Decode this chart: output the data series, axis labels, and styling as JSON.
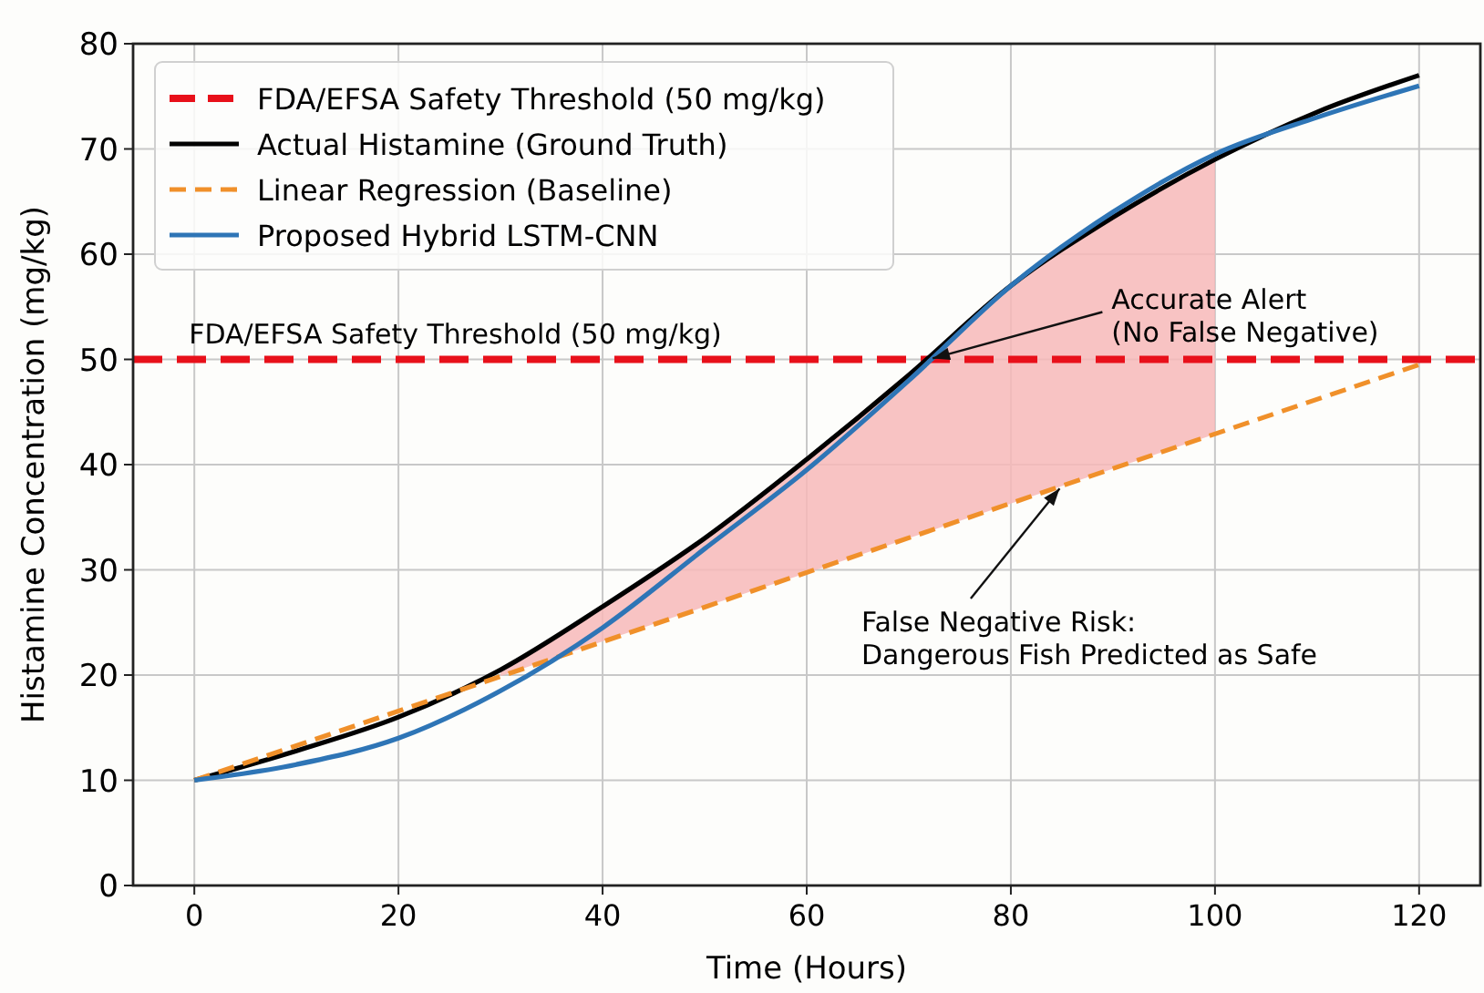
{
  "chart_data": {
    "type": "line",
    "xlabel": "Time (Hours)",
    "ylabel": "Histamine Concentration (mg/kg)",
    "xlim": [
      -6,
      126
    ],
    "xticks": [
      0,
      20,
      40,
      60,
      80,
      100,
      120
    ],
    "ylim": [
      0,
      80
    ],
    "yticks": [
      0,
      10,
      20,
      30,
      40,
      50,
      60,
      70,
      80
    ],
    "grid": true,
    "legend": "top left",
    "line_style": "solid",
    "marker": "none",
    "series": [
      {
        "name": "Actual Histamine (Ground Truth)",
        "color": "#000000",
        "x": [
          0,
          10,
          20,
          30,
          40,
          50,
          60,
          70,
          80,
          90,
          100,
          110,
          120
        ],
        "values": [
          10,
          12.8,
          16,
          20.5,
          26.5,
          33,
          40.5,
          48.5,
          57,
          63.5,
          69,
          73.5,
          77
        ],
        "lower": [
          null,
          null,
          null,
          19.9,
          23.2,
          26.5,
          29.7,
          33,
          36.3,
          39.6,
          42.9,
          null,
          null
        ],
        "upper": [
          null,
          null,
          null,
          20.5,
          26.5,
          33,
          40.5,
          48.5,
          57,
          63.5,
          69,
          null,
          null
        ]
      },
      {
        "name": "Linear Regression (Baseline)",
        "color": "#f0902a",
        "line_style": "dashed",
        "x": [
          0,
          120
        ],
        "values": [
          10,
          49.5
        ]
      },
      {
        "name": "Proposed Hybrid LSTM-CNN",
        "color": "#2e75b6",
        "x": [
          0,
          10,
          20,
          30,
          40,
          50,
          60,
          70,
          80,
          90,
          100,
          110,
          120
        ],
        "values": [
          10,
          11.5,
          14,
          18.5,
          24.5,
          32,
          39.5,
          48,
          57,
          64,
          69.5,
          73,
          76
        ]
      }
    ],
    "ref_lines": [
      {
        "axis": "y",
        "value": 50,
        "label": "FDA/EFSA Safety Threshold (50 mg/kg)",
        "color": "#e8101a",
        "line_style": "dashed"
      }
    ],
    "annotations": [
      {
        "text": "Accurate Alert\n(No False Negative)",
        "x": 72,
        "y": 50
      },
      {
        "text": "False Negative Risk:\nDangerous Fish Predicted as Safe",
        "x": 85,
        "y": 38
      }
    ]
  }
}
